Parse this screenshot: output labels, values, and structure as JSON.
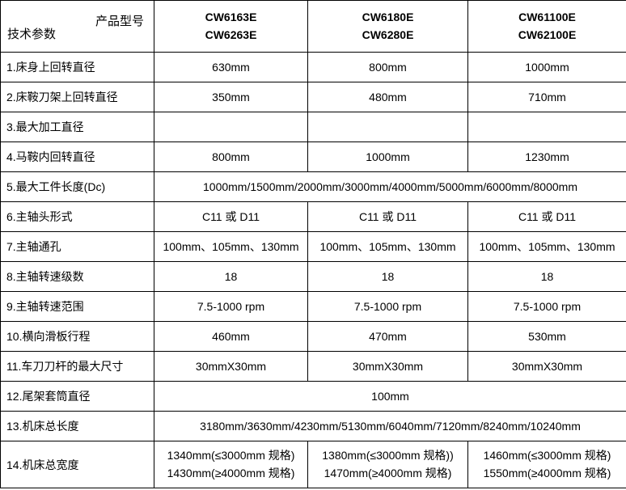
{
  "header": {
    "corner_top": "产品型号",
    "corner_bottom": "技术参数",
    "columns": [
      {
        "line1": "CW6163E",
        "line2": "CW6263E"
      },
      {
        "line1": "CW6180E",
        "line2": "CW6280E"
      },
      {
        "line1": "CW61100E",
        "line2": "CW62100E"
      }
    ]
  },
  "rows": [
    {
      "label": "1.床身上回转直径",
      "values": [
        "630mm",
        "800mm",
        "1000mm"
      ]
    },
    {
      "label": "2.床鞍刀架上回转直径",
      "values": [
        "350mm",
        "480mm",
        "710mm"
      ]
    },
    {
      "label": "3.最大加工直径",
      "values": [
        "",
        "",
        ""
      ]
    },
    {
      "label": "4.马鞍内回转直径",
      "values": [
        "800mm",
        "1000mm",
        "1230mm"
      ]
    },
    {
      "label": "5.最大工件长度(Dc)",
      "span": "1000mm/1500mm/2000mm/3000mm/4000mm/5000mm/6000mm/8000mm"
    },
    {
      "label": "6.主轴头形式",
      "values": [
        "C11 或 D11",
        "C11 或 D11",
        "C11 或 D11"
      ]
    },
    {
      "label": "7.主轴通孔",
      "values": [
        "100mm、105mm、130mm",
        "100mm、105mm、130mm",
        "100mm、105mm、130mm"
      ]
    },
    {
      "label": "8.主轴转速级数",
      "values": [
        "18",
        "18",
        "18"
      ]
    },
    {
      "label": "9.主轴转速范围",
      "values": [
        "7.5-1000 rpm",
        "7.5-1000 rpm",
        "7.5-1000 rpm"
      ]
    },
    {
      "label": "10.横向滑板行程",
      "values": [
        "460mm",
        "470mm",
        "530mm"
      ]
    },
    {
      "label": "11.车刀刀杆的最大尺寸",
      "values": [
        "30mmX30mm",
        "30mmX30mm",
        "30mmX30mm"
      ]
    },
    {
      "label": "12.尾架套筒直径",
      "span": "100mm"
    },
    {
      "label": "13.机床总长度",
      "span": "3180mm/3630mm/4230mm/5130mm/6040mm/7120mm/8240mm/10240mm"
    },
    {
      "label": "14.机床总宽度",
      "values2": [
        [
          "1340mm(≤3000mm 规格)",
          "1430mm(≥4000mm 规格)"
        ],
        [
          "1380mm(≤3000mm 规格))",
          "1470mm(≥4000mm 规格)"
        ],
        [
          "1460mm(≤3000mm 规格)",
          "1550mm(≥4000mm 规格)"
        ]
      ]
    }
  ]
}
